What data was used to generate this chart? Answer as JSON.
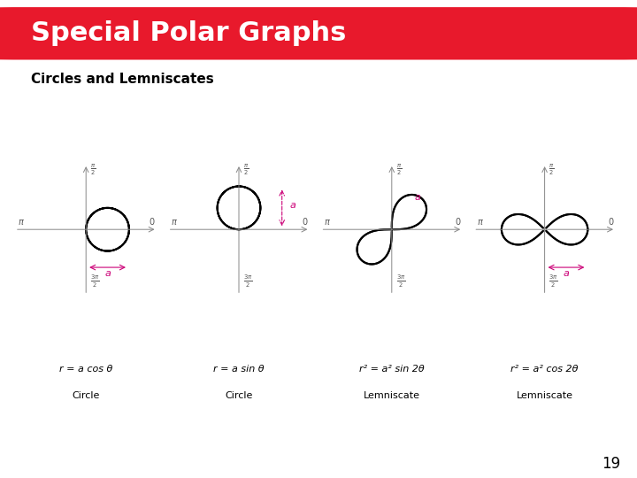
{
  "title": "Special Polar Graphs",
  "title_bg": "#E8192C",
  "title_color": "#FFFFFF",
  "subtitle": "Circles and Lemniscates",
  "page_number": "19",
  "background_color": "#FFFFFF",
  "curve_color": "#000000",
  "axis_color": "#808080",
  "annotation_color": "#CC0077",
  "graphs": [
    {
      "equation": "r = a cos θ",
      "label": "Circle",
      "type": "circle_cos"
    },
    {
      "equation": "r = a sin θ",
      "label": "Circle",
      "type": "circle_sin"
    },
    {
      "equation": "r² = a² sin 2θ",
      "label": "Lemniscate",
      "type": "lemniscate_sin"
    },
    {
      "equation": "r² = a² cos 2θ",
      "label": "Lemniscate",
      "type": "lemniscate_cos"
    }
  ]
}
